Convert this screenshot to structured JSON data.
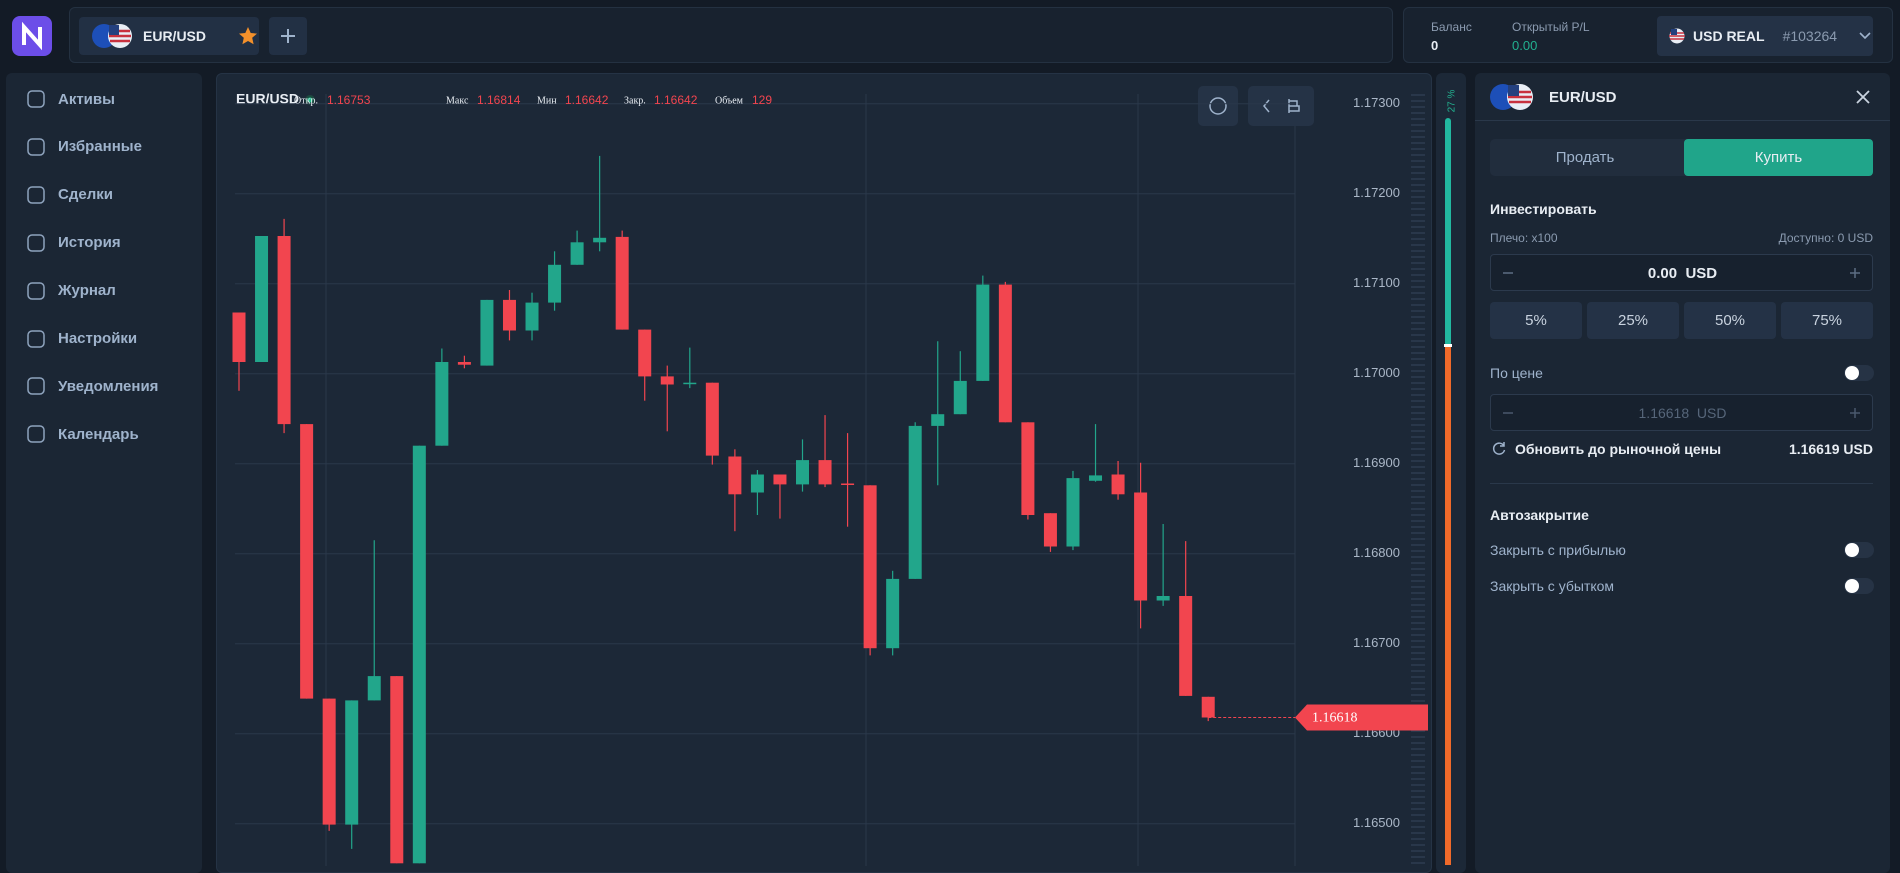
{
  "header": {
    "pair": "EUR/USD",
    "balance_label": "Баланс",
    "balance": "0",
    "pl_label": "Открытый P/L",
    "pl": "0.00",
    "account": "USD REAL",
    "account_id": "#103264"
  },
  "sidebar": {
    "items": [
      "Активы",
      "Избранные",
      "Сделки",
      "История",
      "Журнал",
      "Настройки",
      "Уведомления",
      "Календарь"
    ]
  },
  "chart_data": {
    "type": "candlestick",
    "title": "EUR/USD",
    "stats": [
      {
        "label": "Откр.",
        "value": 1.16753
      },
      {
        "label": "Макс",
        "value": 1.16814
      },
      {
        "label": "Мин",
        "value": 1.16642
      },
      {
        "label": "Закр.",
        "value": 1.16642
      },
      {
        "label": "Объем",
        "value": 129
      }
    ],
    "categories": [
      null,
      null,
      null,
      null,
      null,
      null,
      null,
      null,
      null,
      null,
      null,
      null,
      null,
      null,
      null,
      null,
      null,
      null,
      null,
      null,
      null,
      null,
      null,
      null,
      null,
      null,
      null,
      null,
      null,
      null,
      null,
      null,
      null,
      null,
      null,
      null,
      null,
      null,
      null,
      null,
      null,
      null,
      null,
      null
    ],
    "open": [
      1.17068,
      1.17013,
      1.17153,
      1.16944,
      1.16639,
      1.16499,
      1.16637,
      1.16664,
      1.16456,
      1.1692,
      1.17013,
      1.17009,
      1.17082,
      1.17048,
      1.17079,
      1.17121,
      1.17146,
      1.17152,
      1.17049,
      1.16997,
      1.16989,
      1.1699,
      1.16908,
      1.16868,
      1.16888,
      1.16877,
      1.16904,
      1.16878,
      1.16876,
      1.16695,
      1.16772,
      1.16942,
      1.16955,
      1.16992,
      1.17099,
      1.16946,
      1.16845,
      1.16808,
      1.16881,
      1.16888,
      1.16868,
      1.16748,
      1.16753,
      1.16641
    ],
    "high": [
      1.17068,
      1.17153,
      1.17172,
      1.16944,
      1.16639,
      1.16637,
      1.16815,
      1.16664,
      1.1692,
      1.17028,
      1.1702,
      1.17082,
      1.17093,
      1.1709,
      1.17136,
      1.17159,
      1.17242,
      1.17159,
      1.17049,
      1.17009,
      1.17029,
      1.1699,
      1.16916,
      1.16893,
      1.16888,
      1.16927,
      1.16954,
      1.16934,
      1.16876,
      1.16781,
      1.16946,
      1.17036,
      1.17025,
      1.17109,
      1.17102,
      1.16946,
      1.16845,
      1.16892,
      1.16944,
      1.16903,
      1.16901,
      1.16833,
      1.16814,
      1.16641
    ],
    "low": [
      1.16981,
      1.17013,
      1.16934,
      1.16639,
      1.16492,
      1.16472,
      1.16637,
      1.16456,
      1.16456,
      1.1692,
      1.17006,
      1.17009,
      1.17037,
      1.17037,
      1.1707,
      1.17121,
      1.17136,
      1.17049,
      1.1697,
      1.16936,
      1.16984,
      1.16899,
      1.16825,
      1.16843,
      1.16839,
      1.16869,
      1.16874,
      1.1683,
      1.16687,
      1.16687,
      1.16772,
      1.16876,
      1.16955,
      1.16992,
      1.16946,
      1.16838,
      1.16802,
      1.16804,
      1.1688,
      1.1686,
      1.16717,
      1.16742,
      1.16642,
      1.16614
    ],
    "close": [
      1.17013,
      1.17153,
      1.16944,
      1.16639,
      1.16499,
      1.16637,
      1.16664,
      1.16456,
      1.1692,
      1.17013,
      1.1701,
      1.17082,
      1.17048,
      1.17079,
      1.17121,
      1.17146,
      1.17151,
      1.17049,
      1.16997,
      1.16988,
      1.1699,
      1.16909,
      1.16866,
      1.16888,
      1.16877,
      1.16904,
      1.16877,
      1.16877,
      1.16695,
      1.16772,
      1.16942,
      1.16955,
      1.16992,
      1.17099,
      1.16946,
      1.16843,
      1.16808,
      1.16884,
      1.16887,
      1.16866,
      1.16748,
      1.16753,
      1.16642,
      1.16618
    ],
    "up_color": "#22a68b",
    "down_color": "#f2454f",
    "ylim": [
      1.16453,
      1.17333
    ],
    "yticks": [
      {
        "value": 1.165,
        "label": "1.16500"
      },
      {
        "value": 1.166,
        "label": "1.16600"
      },
      {
        "value": 1.167,
        "label": "1.16700"
      },
      {
        "value": 1.168,
        "label": "1.16800"
      },
      {
        "value": 1.169,
        "label": "1.16900"
      },
      {
        "value": 1.17,
        "label": "1.17000"
      },
      {
        "value": 1.171,
        "label": "1.17100"
      },
      {
        "value": 1.172,
        "label": "1.17200"
      },
      {
        "value": 1.173,
        "label": "1.17300"
      }
    ],
    "grid": true,
    "current_price": 1.16618,
    "sentiment_label": "27 %"
  },
  "order": {
    "pair": "EUR/USD",
    "sell": "Продать",
    "buy": "Купить",
    "invest": "Инвестировать",
    "leverage": "Плечо: x100",
    "available": "Доступно: 0 USD",
    "amount": "0.00",
    "currency": "USD",
    "percents": [
      "5%",
      "25%",
      "50%",
      "75%"
    ],
    "by_price": "По цене",
    "price_input": "1.16618  USD",
    "refresh": "Обновить до рыночной цены",
    "market_price": "1.16619 USD",
    "autoclose": "Автозакрытие",
    "take_profit": "Закрыть с прибылью",
    "stop_loss": "Закрыть с убытком"
  }
}
